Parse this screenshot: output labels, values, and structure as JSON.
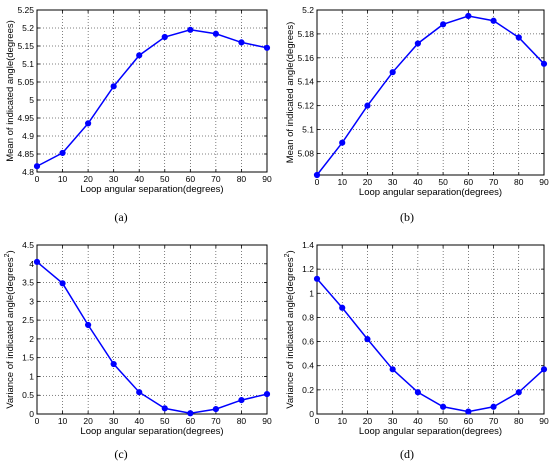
{
  "chart_data": [
    {
      "type": "line",
      "panel_label": "(a)",
      "xlabel": "Loop angular separation(degrees)",
      "ylabel": "Mean of indicated angle(degrees)",
      "x": [
        0,
        10,
        20,
        30,
        40,
        50,
        60,
        70,
        80,
        90
      ],
      "y": [
        4.816,
        4.853,
        4.935,
        5.038,
        5.124,
        5.175,
        5.195,
        5.184,
        5.16,
        5.145
      ],
      "xlim": [
        0,
        90
      ],
      "ylim": [
        4.8,
        5.25
      ],
      "xticks": [
        0,
        10,
        20,
        30,
        40,
        50,
        60,
        70,
        80,
        90
      ],
      "yticks": [
        4.8,
        4.85,
        4.9,
        4.95,
        5.0,
        5.05,
        5.1,
        5.15,
        5.2,
        5.25
      ],
      "ytick_labels": [
        "4.8",
        "4.85",
        "4.9",
        "4.95",
        "5",
        "5.05",
        "5.1",
        "5.15",
        "5.2",
        "5.25"
      ],
      "grid": true,
      "color": "#0000ff"
    },
    {
      "type": "line",
      "panel_label": "(b)",
      "xlabel": "Loop angular separation(degrees)",
      "ylabel": "Mean of indicated angle(degrees)",
      "x": [
        0,
        10,
        20,
        30,
        40,
        50,
        60,
        70,
        80,
        90
      ],
      "y": [
        5.062,
        5.089,
        5.12,
        5.148,
        5.172,
        5.188,
        5.195,
        5.191,
        5.177,
        5.155
      ],
      "xlim": [
        0,
        90
      ],
      "ylim": [
        5.062,
        5.2
      ],
      "xticks": [
        0,
        10,
        20,
        30,
        40,
        50,
        60,
        70,
        80,
        90
      ],
      "yticks": [
        5.08,
        5.1,
        5.12,
        5.14,
        5.16,
        5.18,
        5.2
      ],
      "ytick_labels": [
        "5.08",
        "5.1",
        "5.12",
        "5.14",
        "5.16",
        "5.18",
        "5.2"
      ],
      "grid": true,
      "color": "#0000ff"
    },
    {
      "type": "line",
      "panel_label": "(c)",
      "xlabel": "Loop angular separation(degrees)",
      "ylabel": "Variance of indicated angle(degrees",
      "ylabel_superscript": "2",
      "ylabel_suffix": ")",
      "x": [
        0,
        10,
        20,
        30,
        40,
        50,
        60,
        70,
        80,
        90
      ],
      "y": [
        4.05,
        3.48,
        2.37,
        1.33,
        0.58,
        0.15,
        0.02,
        0.13,
        0.37,
        0.53
      ],
      "xlim": [
        0,
        90
      ],
      "ylim": [
        0,
        4.5
      ],
      "xticks": [
        0,
        10,
        20,
        30,
        40,
        50,
        60,
        70,
        80,
        90
      ],
      "yticks": [
        0,
        0.5,
        1,
        1.5,
        2,
        2.5,
        3,
        3.5,
        4,
        4.5
      ],
      "ytick_labels": [
        "0",
        "0.5",
        "1",
        "1.5",
        "2",
        "2.5",
        "3",
        "3.5",
        "4",
        "4.5"
      ],
      "grid": true,
      "color": "#0000ff"
    },
    {
      "type": "line",
      "panel_label": "(d)",
      "xlabel": "Loop angular separation(degrees)",
      "ylabel": "Variance of indicated angle(degrees",
      "ylabel_superscript": "2",
      "ylabel_suffix": ")",
      "x": [
        0,
        10,
        20,
        30,
        40,
        50,
        60,
        70,
        80,
        90
      ],
      "y": [
        1.12,
        0.88,
        0.62,
        0.37,
        0.18,
        0.06,
        0.02,
        0.06,
        0.18,
        0.37
      ],
      "xlim": [
        0,
        90
      ],
      "ylim": [
        0,
        1.4
      ],
      "xticks": [
        0,
        10,
        20,
        30,
        40,
        50,
        60,
        70,
        80,
        90
      ],
      "yticks": [
        0,
        0.2,
        0.4,
        0.6,
        0.8,
        1,
        1.2,
        1.4
      ],
      "ytick_labels": [
        "0",
        "0.2",
        "0.4",
        "0.6",
        "0.8",
        "1",
        "1.2",
        "1.4"
      ],
      "grid": true,
      "color": "#0000ff"
    }
  ]
}
